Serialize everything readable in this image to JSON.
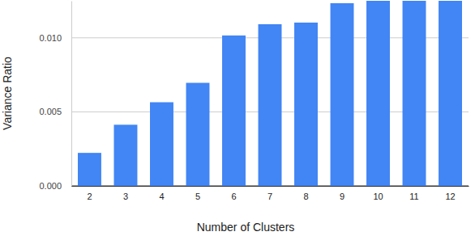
{
  "chart_data": {
    "type": "bar",
    "x_label": "Number of Clusters",
    "y_label": "Variance Ratio",
    "categories": [
      "2",
      "3",
      "4",
      "5",
      "6",
      "7",
      "8",
      "9",
      "10",
      "11",
      "12"
    ],
    "values": [
      0.00223,
      0.00413,
      0.00565,
      0.00696,
      0.01016,
      0.01092,
      0.01103,
      0.01234,
      0.0125,
      0.0125,
      0.0125
    ],
    "color": "#4285f4",
    "ylim": [
      0,
      0.0125
    ],
    "yticks": [
      {
        "value": 0,
        "label": "0.000"
      },
      {
        "value": 0.005,
        "label": "0.005"
      },
      {
        "value": 0.01,
        "label": "0.010"
      }
    ],
    "grid": true
  }
}
